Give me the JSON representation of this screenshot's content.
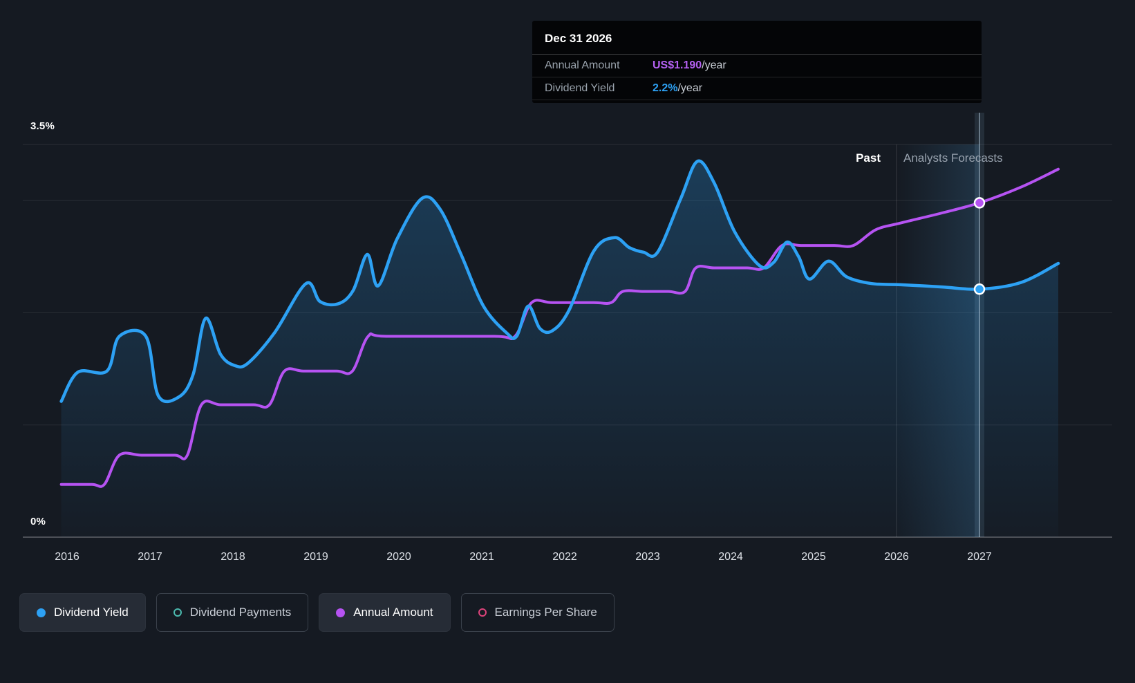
{
  "page": {
    "background": "#151a22"
  },
  "tooltip": {
    "date": "Dec 31 2026",
    "rows": [
      {
        "label": "Annual Amount",
        "value": "US$1.190",
        "suffix": "/year",
        "color": "#b561f2"
      },
      {
        "label": "Dividend Yield",
        "value": "2.2%",
        "suffix": "/year",
        "color": "#2da1f4"
      }
    ]
  },
  "labels": {
    "past": "Past",
    "forecast": "Analysts Forecasts"
  },
  "legend": {
    "items": [
      {
        "label": "Dividend Yield",
        "color": "#2da1f4",
        "style": "filled-dot",
        "active": true
      },
      {
        "label": "Dividend Payments",
        "color": "#4cbbb0",
        "style": "outline-dot",
        "active": false
      },
      {
        "label": "Annual Amount",
        "color": "#b653f2",
        "style": "filled-dot",
        "active": true
      },
      {
        "label": "Earnings Per Share",
        "color": "#e0447c",
        "style": "outline-dot",
        "active": false
      }
    ]
  },
  "chart_data": {
    "type": "line",
    "title": "Dividend yield history and analysts forecast",
    "y_axis": {
      "min": 0,
      "max": 3.5,
      "unit": "%",
      "top_label": "3.5%",
      "bottom_label": "0%"
    },
    "x_ticks": [
      2016,
      2017,
      2018,
      2019,
      2020,
      2021,
      2022,
      2023,
      2024,
      2025,
      2026,
      2027
    ],
    "gridlines": [
      3.5,
      3,
      2,
      1
    ],
    "divider_year": 2026,
    "highlight_year": 2027,
    "legend_position": "bottom",
    "series": [
      {
        "name": "Dividend Yield",
        "color": "#2da1f4",
        "unit": "%",
        "area": true,
        "points": [
          [
            2015.93,
            1.21
          ],
          [
            2016.13,
            1.47
          ],
          [
            2016.48,
            1.48
          ],
          [
            2016.63,
            1.79
          ],
          [
            2016.95,
            1.79
          ],
          [
            2017.1,
            1.26
          ],
          [
            2017.35,
            1.25
          ],
          [
            2017.52,
            1.45
          ],
          [
            2017.67,
            1.95
          ],
          [
            2017.85,
            1.63
          ],
          [
            2018.02,
            1.53
          ],
          [
            2018.18,
            1.55
          ],
          [
            2018.5,
            1.82
          ],
          [
            2018.88,
            2.26
          ],
          [
            2019.05,
            2.1
          ],
          [
            2019.27,
            2.08
          ],
          [
            2019.45,
            2.2
          ],
          [
            2019.62,
            2.52
          ],
          [
            2019.75,
            2.24
          ],
          [
            2019.98,
            2.66
          ],
          [
            2020.28,
            3.02
          ],
          [
            2020.5,
            2.92
          ],
          [
            2020.75,
            2.52
          ],
          [
            2021.02,
            2.06
          ],
          [
            2021.3,
            1.82
          ],
          [
            2021.42,
            1.79
          ],
          [
            2021.56,
            2.06
          ],
          [
            2021.7,
            1.86
          ],
          [
            2021.85,
            1.84
          ],
          [
            2022.05,
            2.02
          ],
          [
            2022.35,
            2.55
          ],
          [
            2022.6,
            2.67
          ],
          [
            2022.78,
            2.58
          ],
          [
            2022.95,
            2.54
          ],
          [
            2023.12,
            2.54
          ],
          [
            2023.4,
            3.02
          ],
          [
            2023.6,
            3.35
          ],
          [
            2023.8,
            3.16
          ],
          [
            2024.05,
            2.72
          ],
          [
            2024.35,
            2.42
          ],
          [
            2024.52,
            2.45
          ],
          [
            2024.68,
            2.63
          ],
          [
            2024.82,
            2.5
          ],
          [
            2024.95,
            2.3
          ],
          [
            2025.18,
            2.46
          ],
          [
            2025.4,
            2.32
          ],
          [
            2025.7,
            2.26
          ],
          [
            2026.05,
            2.25
          ],
          [
            2026.55,
            2.23
          ],
          [
            2027.0,
            2.21
          ],
          [
            2027.5,
            2.27
          ],
          [
            2027.95,
            2.44
          ]
        ]
      },
      {
        "name": "Annual Amount",
        "color": "#b653f2",
        "unit": "US$/year",
        "area": false,
        "note": "Plotted on hidden US$ axis; US$1.190/year at Dec 31 2026 plots at 2.98 on the % scale",
        "points": [
          [
            2015.93,
            0.47
          ],
          [
            2016.3,
            0.47
          ],
          [
            2016.45,
            0.47
          ],
          [
            2016.63,
            0.73
          ],
          [
            2016.9,
            0.73
          ],
          [
            2017.3,
            0.73
          ],
          [
            2017.45,
            0.73
          ],
          [
            2017.62,
            1.18
          ],
          [
            2017.85,
            1.18
          ],
          [
            2018.25,
            1.18
          ],
          [
            2018.44,
            1.18
          ],
          [
            2018.62,
            1.48
          ],
          [
            2018.85,
            1.48
          ],
          [
            2019.25,
            1.48
          ],
          [
            2019.44,
            1.48
          ],
          [
            2019.63,
            1.79
          ],
          [
            2019.85,
            1.79
          ],
          [
            2021.15,
            1.79
          ],
          [
            2021.4,
            1.79
          ],
          [
            2021.6,
            2.09
          ],
          [
            2021.85,
            2.09
          ],
          [
            2022.35,
            2.09
          ],
          [
            2022.56,
            2.09
          ],
          [
            2022.7,
            2.19
          ],
          [
            2022.95,
            2.19
          ],
          [
            2023.25,
            2.19
          ],
          [
            2023.45,
            2.19
          ],
          [
            2023.58,
            2.4
          ],
          [
            2023.8,
            2.4
          ],
          [
            2024.2,
            2.4
          ],
          [
            2024.4,
            2.4
          ],
          [
            2024.62,
            2.6
          ],
          [
            2024.85,
            2.6
          ],
          [
            2025.25,
            2.6
          ],
          [
            2025.48,
            2.6
          ],
          [
            2025.75,
            2.74
          ],
          [
            2026.05,
            2.8
          ],
          [
            2026.55,
            2.89
          ],
          [
            2027.0,
            2.98
          ],
          [
            2027.5,
            3.12
          ],
          [
            2027.95,
            3.28
          ]
        ]
      }
    ],
    "markers": [
      {
        "series": 1,
        "x": 2027,
        "y": 2.98,
        "name": "annual-amount-marker"
      },
      {
        "series": 0,
        "x": 2027,
        "y": 2.21,
        "name": "dividend-yield-marker"
      }
    ]
  }
}
